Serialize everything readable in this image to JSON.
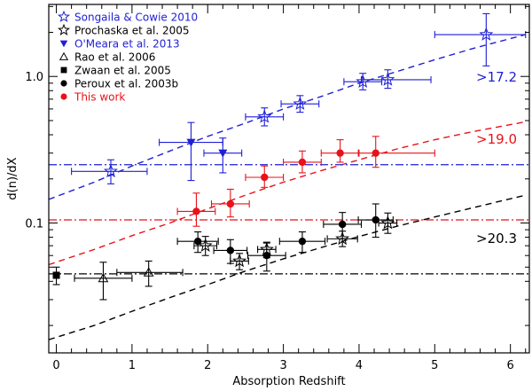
{
  "chart_data": {
    "type": "scatter",
    "title": "",
    "xlabel": "Absorption Redshift",
    "ylabel": "d(n)/dX",
    "xlim": [
      -0.1,
      6.25
    ],
    "ylim": [
      0.013,
      3.1
    ],
    "yscale": "log",
    "x_ticks": [
      "0",
      "1",
      "2",
      "3",
      "4",
      "5",
      "6"
    ],
    "y_ticks": [
      "0.1",
      "1.0"
    ],
    "colors": {
      "blue": "#1f1fd6",
      "red": "#e8121a",
      "black": "#000000"
    },
    "legend": [
      {
        "label": "Songaila & Cowie 2010",
        "marker": "open-star",
        "color": "#1f1fd6"
      },
      {
        "label": "Prochaska et al. 2005",
        "marker": "open-star",
        "color": "#000000"
      },
      {
        "label": "O'Meara et al. 2013",
        "marker": "filled-triangle-down",
        "color": "#1f1fd6"
      },
      {
        "label": "Rao et al. 2006",
        "marker": "open-triangle",
        "color": "#000000"
      },
      {
        "label": "Zwaan et al. 2005",
        "marker": "filled-square",
        "color": "#000000"
      },
      {
        "label": "Peroux et al. 2003b",
        "marker": "filled-circle",
        "color": "#000000"
      },
      {
        "label": "This work",
        "marker": "filled-circle",
        "color": "#e8121a"
      }
    ],
    "annotations": [
      {
        "text": ">17.2",
        "color": "#1f1fd6"
      },
      {
        "text": ">19.0",
        "color": "#e8121a"
      },
      {
        "text": ">20.3",
        "color": "#000000"
      }
    ],
    "reference_lines": [
      {
        "y": 0.25,
        "style": "dash-dot",
        "color": "#1f1fd6"
      },
      {
        "y": 0.105,
        "style": "dash-dot",
        "color": "#e8121a"
      },
      {
        "y": 0.045,
        "style": "dash-dot",
        "color": "#000000"
      }
    ],
    "curves": [
      {
        "color": "#1f1fd6",
        "x": [
          -0.1,
          0.5,
          1,
          1.5,
          2,
          2.5,
          3,
          3.5,
          4,
          4.5,
          5,
          5.5,
          6.2
        ],
        "y": [
          0.145,
          0.19,
          0.245,
          0.31,
          0.39,
          0.48,
          0.6,
          0.73,
          0.9,
          1.08,
          1.3,
          1.55,
          1.93
        ]
      },
      {
        "color": "#e8121a",
        "x": [
          -0.1,
          0.5,
          1,
          1.5,
          2,
          2.5,
          3,
          3.5,
          4,
          4.5,
          5,
          5.5,
          6.2
        ],
        "y": [
          0.052,
          0.066,
          0.082,
          0.1,
          0.125,
          0.155,
          0.19,
          0.228,
          0.27,
          0.32,
          0.37,
          0.42,
          0.49
        ]
      },
      {
        "color": "#000000",
        "x": [
          -0.1,
          0.5,
          1,
          1.5,
          2,
          2.5,
          3,
          3.5,
          4,
          4.5,
          5,
          5.5,
          6.2
        ],
        "y": [
          0.016,
          0.02,
          0.025,
          0.031,
          0.038,
          0.047,
          0.057,
          0.068,
          0.081,
          0.095,
          0.11,
          0.127,
          0.155
        ]
      }
    ],
    "series": [
      {
        "name": "Songaila & Cowie 2010",
        "marker": "open-star",
        "color": "#1f1fd6",
        "points": [
          {
            "x": 0.72,
            "y": 0.225,
            "xerr": [
              0.52,
              0.48
            ],
            "yerr": [
              0.04,
              0.045
            ]
          },
          {
            "x": 2.75,
            "y": 0.53,
            "xerr": [
              0.25,
              0.25
            ],
            "yerr": [
              0.07,
              0.08
            ]
          },
          {
            "x": 3.22,
            "y": 0.65,
            "xerr": [
              0.25,
              0.25
            ],
            "yerr": [
              0.08,
              0.09
            ]
          },
          {
            "x": 4.05,
            "y": 0.92,
            "xerr": [
              0.25,
              0.25
            ],
            "yerr": [
              0.11,
              0.13
            ]
          },
          {
            "x": 4.38,
            "y": 0.95,
            "xerr": [
              0.35,
              0.57
            ],
            "yerr": [
              0.12,
              0.16
            ]
          },
          {
            "x": 5.68,
            "y": 1.93,
            "xerr": [
              0.68,
              0.52
            ],
            "yerr": [
              0.75,
              0.75
            ]
          }
        ]
      },
      {
        "name": "Prochaska et al. 2005",
        "marker": "open-star",
        "color": "#000000",
        "points": [
          {
            "x": 1.97,
            "y": 0.07,
            "xerr": [
              0.15,
              0.15
            ],
            "yerr": [
              0.01,
              0.011
            ]
          },
          {
            "x": 2.42,
            "y": 0.055,
            "xerr": [
              0.12,
              0.12
            ],
            "yerr": [
              0.007,
              0.007
            ]
          },
          {
            "x": 2.78,
            "y": 0.066,
            "xerr": [
              0.12,
              0.12
            ],
            "yerr": [
              0.008,
              0.008
            ]
          },
          {
            "x": 3.78,
            "y": 0.078,
            "xerr": [
              0.2,
              0.2
            ],
            "yerr": [
              0.009,
              0.01
            ]
          },
          {
            "x": 4.38,
            "y": 0.1,
            "xerr": [
              0.12,
              0.12
            ],
            "yerr": [
              0.015,
              0.017
            ]
          }
        ]
      },
      {
        "name": "O'Meara et al. 2013",
        "marker": "filled-triangle-down",
        "color": "#1f1fd6",
        "points": [
          {
            "x": 1.78,
            "y": 0.355,
            "xerr": [
              0.42,
              0.42
            ],
            "yerr": [
              0.16,
              0.13
            ]
          },
          {
            "x": 2.2,
            "y": 0.3,
            "xerr": [
              0.25,
              0.25
            ],
            "yerr": [
              0.08,
              0.08
            ]
          }
        ]
      },
      {
        "name": "Rao et al. 2006",
        "marker": "open-triangle",
        "color": "#000000",
        "points": [
          {
            "x": 0.62,
            "y": 0.042,
            "xerr": [
              0.38,
              0.38
            ],
            "yerr": [
              0.012,
              0.012
            ]
          },
          {
            "x": 1.22,
            "y": 0.046,
            "xerr": [
              0.42,
              0.45
            ],
            "yerr": [
              0.009,
              0.009
            ]
          }
        ]
      },
      {
        "name": "Zwaan et al. 2005",
        "marker": "filled-square",
        "color": "#000000",
        "points": [
          {
            "x": 0.0,
            "y": 0.044,
            "xerr": [
              0,
              0
            ],
            "yerr": [
              0.006,
              0.006
            ]
          }
        ]
      },
      {
        "name": "Peroux et al. 2003b",
        "marker": "filled-circle",
        "color": "#000000",
        "points": [
          {
            "x": 1.87,
            "y": 0.075,
            "xerr": [
              0.27,
              0.27
            ],
            "yerr": [
              0.012,
              0.012
            ]
          },
          {
            "x": 2.3,
            "y": 0.065,
            "xerr": [
              0.22,
              0.22
            ],
            "yerr": [
              0.012,
              0.012
            ]
          },
          {
            "x": 2.78,
            "y": 0.06,
            "xerr": [
              0.25,
              0.25
            ],
            "yerr": [
              0.013,
              0.013
            ]
          },
          {
            "x": 3.25,
            "y": 0.075,
            "xerr": [
              0.3,
              0.3
            ],
            "yerr": [
              0.012,
              0.012
            ]
          },
          {
            "x": 3.78,
            "y": 0.098,
            "xerr": [
              0.25,
              0.25
            ],
            "yerr": [
              0.02,
              0.02
            ]
          },
          {
            "x": 4.22,
            "y": 0.105,
            "xerr": [
              0.23,
              0.23
            ],
            "yerr": [
              0.025,
              0.03
            ]
          }
        ]
      },
      {
        "name": "This work",
        "marker": "filled-circle",
        "color": "#e8121a",
        "points": [
          {
            "x": 1.85,
            "y": 0.12,
            "xerr": [
              0.25,
              0.25
            ],
            "yerr": [
              0.025,
              0.04
            ]
          },
          {
            "x": 2.3,
            "y": 0.135,
            "xerr": [
              0.25,
              0.25
            ],
            "yerr": [
              0.025,
              0.035
            ]
          },
          {
            "x": 2.75,
            "y": 0.205,
            "xerr": [
              0.25,
              0.25
            ],
            "yerr": [
              0.03,
              0.04
            ]
          },
          {
            "x": 3.25,
            "y": 0.26,
            "xerr": [
              0.25,
              0.25
            ],
            "yerr": [
              0.04,
              0.05
            ]
          },
          {
            "x": 3.75,
            "y": 0.3,
            "xerr": [
              0.25,
              0.25
            ],
            "yerr": [
              0.04,
              0.07
            ]
          },
          {
            "x": 4.22,
            "y": 0.3,
            "xerr": [
              0.23,
              0.78
            ],
            "yerr": [
              0.06,
              0.09
            ]
          }
        ]
      }
    ]
  }
}
